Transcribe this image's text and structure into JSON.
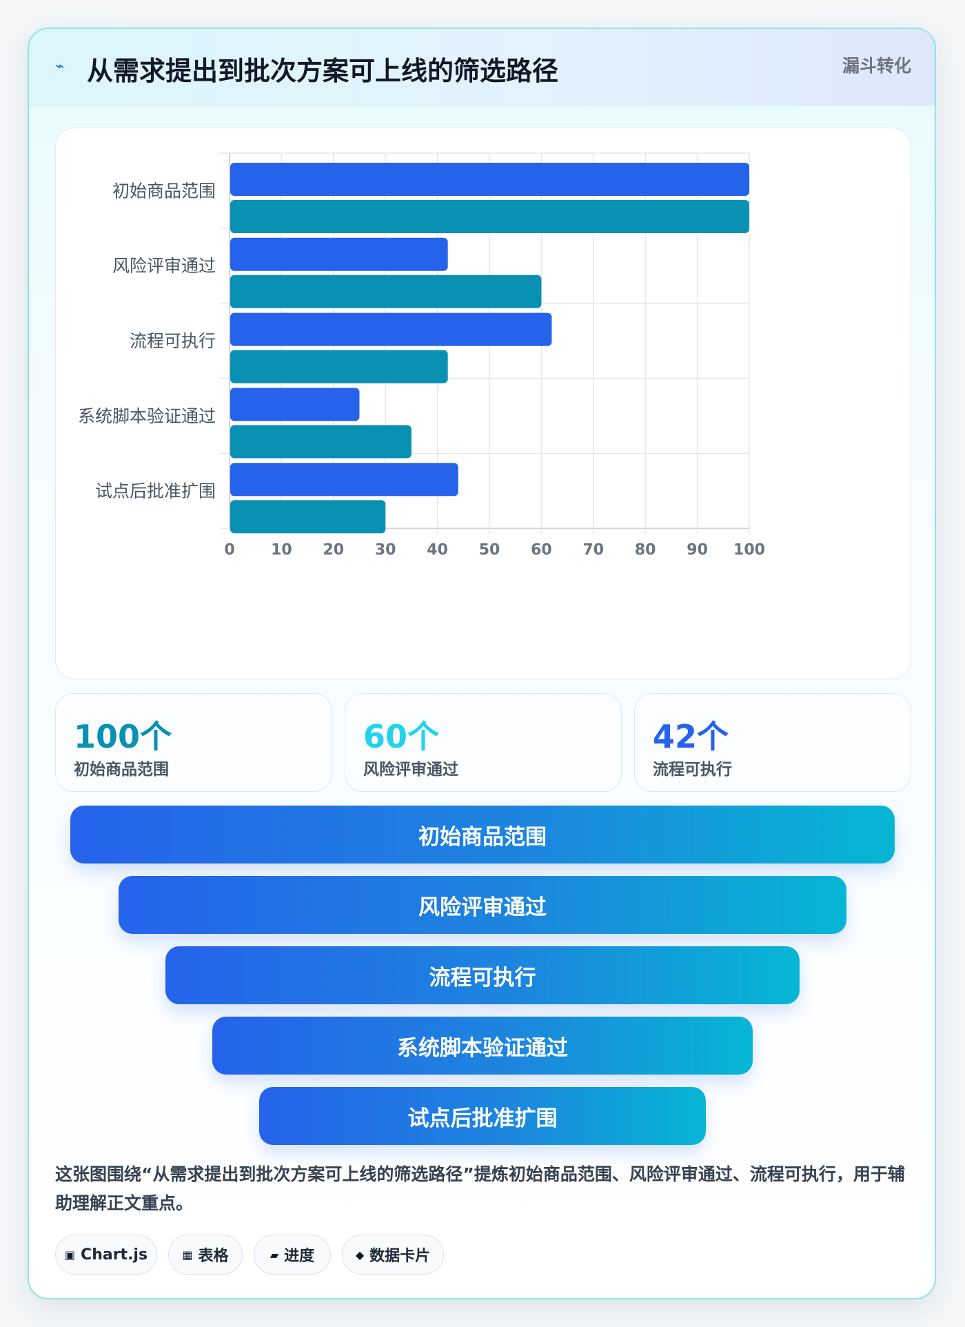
{
  "header": {
    "icon": "lightning-icon",
    "title": "从需求提出到批次方案可上线的筛选路径",
    "badge": "漏斗转化"
  },
  "chart_data": {
    "type": "bar",
    "orientation": "horizontal",
    "categories": [
      "初始商品范围",
      "风险评审通过",
      "流程可执行",
      "系统脚本验证通过",
      "试点后批准扩围"
    ],
    "series": [
      {
        "values": [
          100,
          42,
          62,
          25,
          44
        ],
        "color": "#2563eb"
      },
      {
        "values": [
          100,
          60,
          42,
          35,
          30
        ],
        "color": "#0891b2"
      }
    ],
    "xlim": [
      0,
      100
    ],
    "xticks": [
      0,
      10,
      20,
      30,
      40,
      50,
      60,
      70,
      80,
      90,
      100
    ],
    "grid": true
  },
  "stats": [
    {
      "value": "100个",
      "label": "初始商品范围",
      "color": "#0891b2"
    },
    {
      "value": "60个",
      "label": "风险评审通过",
      "color": "#22d3ee"
    },
    {
      "value": "42个",
      "label": "流程可执行",
      "color": "#2563eb"
    }
  ],
  "funnel": [
    {
      "label": "初始商品范围"
    },
    {
      "label": "风险评审通过"
    },
    {
      "label": "流程可执行"
    },
    {
      "label": "系统脚本验证通过"
    },
    {
      "label": "试点后批准扩围"
    }
  ],
  "description": "这张图围绕“从需求提出到批次方案可上线的筛选路径”提炼初始商品范围、风险评审通过、流程可执行，用于辅助理解正文重点。",
  "chips": [
    {
      "icon": "▣",
      "label": "Chart.js"
    },
    {
      "icon": "▦",
      "label": "表格"
    },
    {
      "icon": "▰",
      "label": "进度"
    },
    {
      "icon": "◆",
      "label": "数据卡片"
    }
  ]
}
